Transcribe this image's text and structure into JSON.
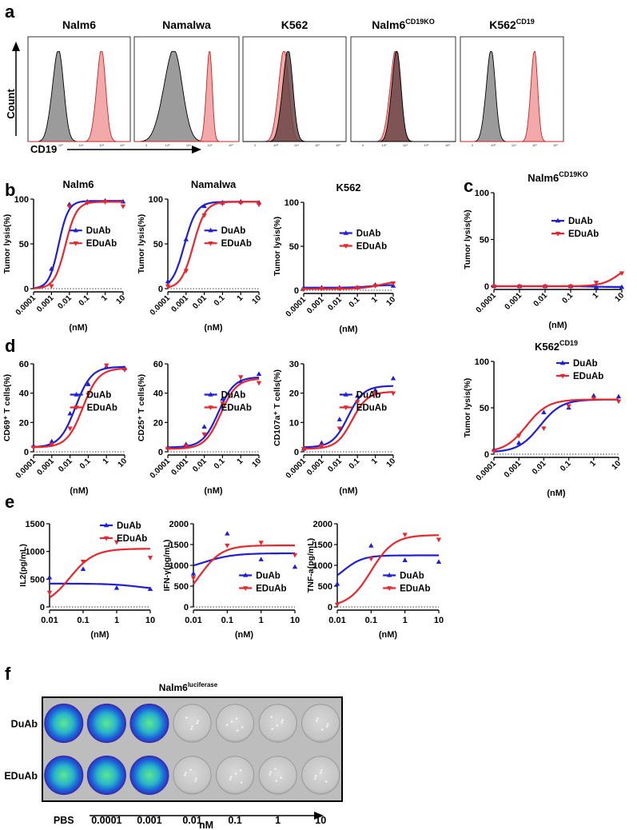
{
  "colors": {
    "duab": "#1f1fd6",
    "eduab": "#e8262b",
    "gray_fill": "#8a8a8a",
    "red_fill": "#f09a9a",
    "well_blue": "#1b5fd8",
    "well_green": "#2fd86a",
    "well_gray": "#c9c9c9"
  },
  "panel_letters": {
    "a": "a",
    "b": "b",
    "c": "c",
    "d": "d",
    "e": "e",
    "f": "f"
  },
  "panel_a": {
    "y_label": "Count",
    "x_label": "CD19",
    "histograms": [
      {
        "title": "Nalm6",
        "sup": ""
      },
      {
        "title": "Namalwa",
        "sup": ""
      },
      {
        "title": "K562",
        "sup": ""
      },
      {
        "title": "Nalm6",
        "sup": "CD19KO"
      },
      {
        "title": "K562",
        "sup": "CD19"
      }
    ],
    "tick_labels": [
      "0",
      "10³",
      "10⁴",
      "10⁵",
      "10⁶"
    ]
  },
  "legend": {
    "duab": "DuAb",
    "eduab": "EDuAb"
  },
  "chart_data": [
    {
      "id": "b1",
      "type": "line",
      "title": "Nalm6",
      "sup": "",
      "xlabel": "(nM)",
      "ylabel": "Tumor lysis(%)",
      "xscale": "log",
      "xticks": [
        "0.0001",
        "0.001",
        "0.01",
        "0.1",
        "1",
        "10"
      ],
      "ylim": [
        0,
        100
      ],
      "yticks": [
        0,
        50,
        100
      ],
      "legend": "middle-right",
      "series": [
        {
          "name": "DuAb",
          "x": [
            0.001,
            0.01,
            0.1,
            1,
            10
          ],
          "y": [
            22,
            94,
            97,
            98,
            97
          ],
          "fit": {
            "bottom": 0,
            "top": 98,
            "ec50": 0.0025,
            "hill": 1.6
          }
        },
        {
          "name": "EDuAb",
          "x": [
            0.001,
            0.01,
            0.1,
            1,
            10
          ],
          "y": [
            3,
            92,
            96,
            97,
            92
          ],
          "fit": {
            "bottom": 0,
            "top": 97,
            "ec50": 0.006,
            "hill": 1.4
          }
        }
      ]
    },
    {
      "id": "b2",
      "type": "line",
      "title": "Namalwa",
      "sup": "",
      "xlabel": "(nM)",
      "ylabel": "Tumor lysis(%)",
      "xscale": "log",
      "xticks": [
        "0.0001",
        "0.001",
        "0.01",
        "0.1",
        "1",
        "10"
      ],
      "ylim": [
        0,
        100
      ],
      "yticks": [
        0,
        50,
        100
      ],
      "legend": "middle-right",
      "series": [
        {
          "name": "DuAb",
          "x": [
            0.0001,
            0.001,
            0.01,
            0.1,
            1,
            10
          ],
          "y": [
            8,
            55,
            92,
            96,
            97,
            96
          ],
          "fit": {
            "bottom": 0,
            "top": 97,
            "ec50": 0.0008,
            "hill": 1.3
          }
        },
        {
          "name": "EDuAb",
          "x": [
            0.0001,
            0.001,
            0.01,
            0.1,
            1,
            10
          ],
          "y": [
            3,
            20,
            82,
            95,
            96,
            94
          ],
          "fit": {
            "bottom": 0,
            "top": 97,
            "ec50": 0.0025,
            "hill": 1.3
          }
        }
      ]
    },
    {
      "id": "b3",
      "type": "line",
      "title": "K562",
      "sup": "",
      "xlabel": "(nM)",
      "ylabel": "Tumor lysis(%)",
      "xscale": "log",
      "xticks": [
        "0.0001",
        "0.001",
        "0.01",
        "0.1",
        "1",
        "10"
      ],
      "ylim": [
        0,
        100
      ],
      "yticks": [
        0,
        50,
        100
      ],
      "legend": "middle-right",
      "series": [
        {
          "name": "DuAb",
          "x": [
            0.0001,
            0.001,
            0.01,
            0.1,
            1,
            10
          ],
          "y": [
            3,
            3,
            3,
            3,
            6,
            5
          ],
          "fit": {
            "bottom": 3,
            "top": 6,
            "ec50": 0.5,
            "hill": 1
          }
        },
        {
          "name": "EDuAb",
          "x": [
            0.0001,
            0.001,
            0.01,
            0.1,
            1,
            10
          ],
          "y": [
            1,
            2,
            2,
            3,
            5,
            8
          ],
          "fit": {
            "bottom": 1.5,
            "top": 11,
            "ec50": 2,
            "hill": 0.8
          }
        }
      ]
    },
    {
      "id": "c1",
      "type": "line",
      "title": "Nalm6",
      "sup": "CD19KO",
      "xlabel": "(nM)",
      "ylabel": "Tumor lysis(%)",
      "xscale": "log",
      "xticks": [
        "0.0001",
        "0.001",
        "0.01",
        "0.1",
        "1",
        "10"
      ],
      "ylim": [
        0,
        100
      ],
      "yticks": [
        0,
        50,
        100
      ],
      "legend": "middle-right",
      "series": [
        {
          "name": "DuAb",
          "x": [
            0.0001,
            0.001,
            0.01,
            0.1,
            1,
            10
          ],
          "y": [
            0,
            0,
            0,
            0,
            -1,
            -1
          ],
          "fit": {
            "bottom": 0,
            "top": -1,
            "ec50": 1,
            "hill": 1
          }
        },
        {
          "name": "EDuAb",
          "x": [
            0.0001,
            0.001,
            0.01,
            0.1,
            1,
            10
          ],
          "y": [
            0,
            0,
            0,
            0,
            4,
            14
          ],
          "fit": {
            "bottom": 0,
            "top": 30,
            "ec50": 10,
            "hill": 1.2
          }
        }
      ]
    },
    {
      "id": "c2",
      "type": "line",
      "title": "K562",
      "sup": "CD19",
      "xlabel": "(nM)",
      "ylabel": "Tumor lysis(%)",
      "xscale": "log",
      "xticks": [
        "0.0001",
        "0.001",
        "0.01",
        "0.1",
        "1",
        "10"
      ],
      "ylim": [
        0,
        100
      ],
      "yticks": [
        0,
        50,
        100
      ],
      "legend": "top-right",
      "series": [
        {
          "name": "DuAb",
          "x": [
            0.0001,
            0.001,
            0.01,
            0.1,
            1,
            10
          ],
          "y": [
            5,
            12,
            45,
            50,
            63,
            62
          ],
          "fit": {
            "bottom": 2,
            "top": 59,
            "ec50": 0.007,
            "hill": 1
          }
        },
        {
          "name": "EDuAb",
          "x": [
            0.0001,
            0.001,
            0.01,
            0.1,
            1,
            10
          ],
          "y": [
            3,
            20,
            28,
            52,
            60,
            57
          ],
          "fit": {
            "bottom": 2,
            "top": 59,
            "ec50": 0.002,
            "hill": 1
          }
        }
      ]
    },
    {
      "id": "d1",
      "type": "line",
      "title": "",
      "sup": "",
      "xlabel": "(nM)",
      "ylabel": "CD69⁺ T cells(%)",
      "xscale": "log",
      "xticks": [
        "0.0001",
        "0.001",
        "0.01",
        "0.1",
        "1",
        "10"
      ],
      "ylim": [
        0,
        60
      ],
      "yticks": [
        0,
        20,
        40,
        60
      ],
      "legend": "middle-right",
      "series": [
        {
          "name": "DuAb",
          "x": [
            0.0001,
            0.001,
            0.01,
            0.1,
            1,
            10
          ],
          "y": [
            4,
            7,
            26,
            46,
            58,
            57
          ],
          "fit": {
            "bottom": 3,
            "top": 58,
            "ec50": 0.02,
            "hill": 1
          }
        },
        {
          "name": "EDuAb",
          "x": [
            0.0001,
            0.001,
            0.01,
            0.1,
            1,
            10
          ],
          "y": [
            3,
            5,
            16,
            39,
            59,
            56
          ],
          "fit": {
            "bottom": 3,
            "top": 57,
            "ec50": 0.05,
            "hill": 1
          }
        }
      ]
    },
    {
      "id": "d2",
      "type": "line",
      "title": "",
      "sup": "",
      "xlabel": "(nM)",
      "ylabel": "CD25⁺ T cells(%)",
      "xscale": "log",
      "xticks": [
        "0.0001",
        "0.001",
        "0.01",
        "0.1",
        "1",
        "10"
      ],
      "ylim": [
        0,
        60
      ],
      "yticks": [
        0,
        20,
        40,
        60
      ],
      "legend": "middle-right",
      "series": [
        {
          "name": "DuAb",
          "x": [
            0.0001,
            0.001,
            0.01,
            0.1,
            1,
            10
          ],
          "y": [
            3,
            5,
            17,
            36,
            48,
            53
          ],
          "fit": {
            "bottom": 3,
            "top": 51,
            "ec50": 0.06,
            "hill": 1
          }
        },
        {
          "name": "EDuAb",
          "x": [
            0.0001,
            0.001,
            0.01,
            0.1,
            1,
            10
          ],
          "y": [
            2,
            4,
            12,
            33,
            51,
            47
          ],
          "fit": {
            "bottom": 2,
            "top": 50,
            "ec50": 0.08,
            "hill": 1
          }
        }
      ]
    },
    {
      "id": "d3",
      "type": "line",
      "title": "",
      "sup": "",
      "xlabel": "(nM)",
      "ylabel": "CD107a⁺ T cells(%)",
      "xscale": "log",
      "xticks": [
        "0.0001",
        "0.001",
        "0.01",
        "0.1",
        "1",
        "10"
      ],
      "ylim": [
        0,
        30
      ],
      "yticks": [
        0,
        10,
        20,
        30
      ],
      "legend": "middle-right",
      "series": [
        {
          "name": "DuAb",
          "x": [
            0.0001,
            0.001,
            0.01,
            0.1,
            1,
            10
          ],
          "y": [
            1,
            3,
            11,
            19,
            21,
            25
          ],
          "fit": {
            "bottom": 1.5,
            "top": 22.5,
            "ec50": 0.03,
            "hill": 1
          }
        },
        {
          "name": "EDuAb",
          "x": [
            0.0001,
            0.001,
            0.01,
            0.1,
            1,
            10
          ],
          "y": [
            1,
            2,
            8,
            17,
            20,
            20
          ],
          "fit": {
            "bottom": 1,
            "top": 20.5,
            "ec50": 0.05,
            "hill": 1
          }
        }
      ]
    },
    {
      "id": "e1",
      "type": "line",
      "title": "",
      "sup": "",
      "xlabel": "(nM)",
      "ylabel": "IL2(pg/mL)",
      "xscale": "log",
      "xticks": [
        "0.01",
        "0.1",
        "1",
        "10"
      ],
      "ylim": [
        0,
        1500
      ],
      "yticks": [
        0,
        500,
        1000,
        1500
      ],
      "legend": "top-right",
      "series": [
        {
          "name": "DuAb",
          "x": [
            0.01,
            0.1,
            1,
            10
          ],
          "y": [
            530,
            680,
            340,
            320
          ],
          "fit": {
            "bottom": 420,
            "top": 300,
            "ec50": 5,
            "hill": 1
          }
        },
        {
          "name": "EDuAb",
          "x": [
            0.01,
            0.1,
            1,
            10
          ],
          "y": [
            260,
            820,
            1170,
            890
          ],
          "fit": {
            "bottom": 0,
            "top": 1050,
            "ec50": 0.04,
            "hill": 1.2
          }
        }
      ]
    },
    {
      "id": "e2",
      "type": "line",
      "title": "",
      "sup": "",
      "xlabel": "(nM)",
      "ylabel": "IFN-γ(pg/mL)",
      "xscale": "log",
      "xticks": [
        "0.01",
        "0.1",
        "1",
        "10"
      ],
      "ylim": [
        0,
        2000
      ],
      "yticks": [
        0,
        500,
        1000,
        1500,
        2000
      ],
      "legend": "bottom-right",
      "series": [
        {
          "name": "DuAb",
          "x": [
            0.01,
            0.1,
            1,
            10
          ],
          "y": [
            800,
            1760,
            1140,
            960
          ],
          "fit": {
            "bottom": 850,
            "top": 1290,
            "ec50": 0.02,
            "hill": 1
          }
        },
        {
          "name": "EDuAb",
          "x": [
            0.01,
            0.1,
            1,
            10
          ],
          "y": [
            700,
            1480,
            1550,
            1250
          ],
          "fit": {
            "bottom": 0,
            "top": 1480,
            "ec50": 0.015,
            "hill": 1.3
          }
        }
      ]
    },
    {
      "id": "e3",
      "type": "line",
      "title": "",
      "sup": "",
      "xlabel": "(nM)",
      "ylabel": "TNF-a(pg/mL)",
      "xscale": "log",
      "xticks": [
        "0.01",
        "0.1",
        "1",
        "10"
      ],
      "ylim": [
        0,
        2000
      ],
      "yticks": [
        0,
        500,
        1000,
        1500,
        2000
      ],
      "legend": "bottom-right",
      "series": [
        {
          "name": "DuAb",
          "x": [
            0.01,
            0.1,
            1,
            10
          ],
          "y": [
            550,
            1470,
            1120,
            1080
          ],
          "fit": {
            "bottom": 500,
            "top": 1240,
            "ec50": 0.015,
            "hill": 1.5
          }
        },
        {
          "name": "EDuAb",
          "x": [
            0.01,
            0.1,
            1,
            10
          ],
          "y": [
            60,
            1160,
            1740,
            1620
          ],
          "fit": {
            "bottom": 0,
            "top": 1730,
            "ec50": 0.1,
            "hill": 1.3
          }
        }
      ]
    }
  ],
  "panel_f": {
    "title": "Nalm6",
    "title_sup": "luciferase",
    "rows": [
      "DuAb",
      "EDuAb"
    ],
    "concentrations": [
      "PBS",
      "0.0001",
      "0.001",
      "0.01",
      "0.1",
      "1",
      "10"
    ],
    "unit": "nM",
    "signal": [
      [
        1,
        1,
        1,
        0,
        0,
        0,
        0
      ],
      [
        1,
        1,
        1,
        0,
        0,
        0,
        0
      ]
    ]
  }
}
